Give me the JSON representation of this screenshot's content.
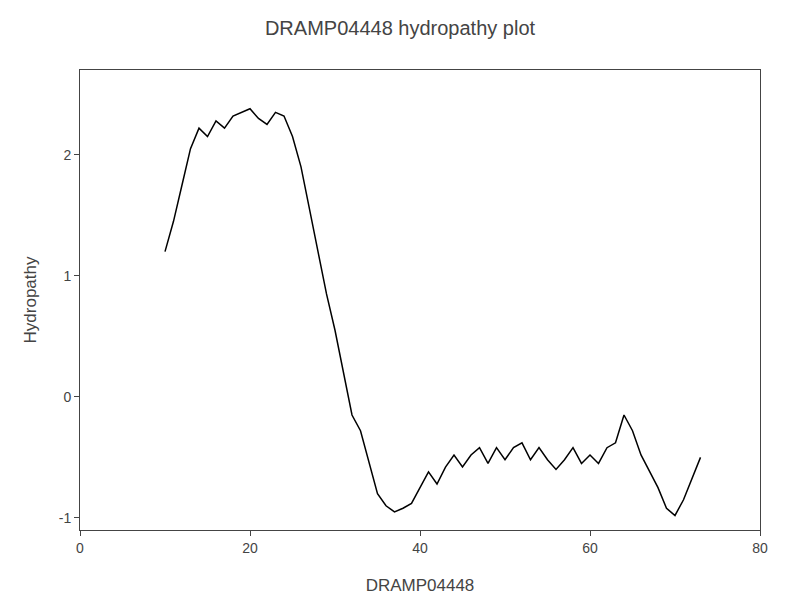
{
  "chart_data": {
    "type": "line",
    "title": "DRAMP04448 hydropathy plot",
    "xlabel": "DRAMP04448",
    "ylabel": "Hydropathy",
    "xlim": [
      0,
      80
    ],
    "ylim": [
      -1.1,
      2.7
    ],
    "xticks": [
      0,
      20,
      40,
      60,
      80
    ],
    "yticks": [
      -1,
      0,
      1,
      2
    ],
    "grid": false,
    "color": "#000000",
    "x": [
      10,
      11,
      12,
      13,
      14,
      15,
      16,
      17,
      18,
      19,
      20,
      21,
      22,
      23,
      24,
      25,
      26,
      27,
      28,
      29,
      30,
      31,
      32,
      33,
      34,
      35,
      36,
      37,
      38,
      39,
      40,
      41,
      42,
      43,
      44,
      45,
      46,
      47,
      48,
      49,
      50,
      51,
      52,
      53,
      54,
      55,
      56,
      57,
      58,
      59,
      60,
      61,
      62,
      63,
      64,
      65,
      66,
      67,
      68,
      69,
      70,
      71,
      72,
      73
    ],
    "values": [
      1.2,
      1.45,
      1.75,
      2.05,
      2.22,
      2.15,
      2.28,
      2.22,
      2.32,
      2.35,
      2.38,
      2.3,
      2.25,
      2.35,
      2.32,
      2.15,
      1.9,
      1.55,
      1.2,
      0.85,
      0.55,
      0.2,
      -0.15,
      -0.28,
      -0.55,
      -0.8,
      -0.9,
      -0.95,
      -0.92,
      -0.88,
      -0.75,
      -0.62,
      -0.72,
      -0.58,
      -0.48,
      -0.58,
      -0.48,
      -0.42,
      -0.55,
      -0.42,
      -0.52,
      -0.42,
      -0.38,
      -0.52,
      -0.42,
      -0.52,
      -0.6,
      -0.52,
      -0.42,
      -0.55,
      -0.48,
      -0.55,
      -0.42,
      -0.38,
      -0.15,
      -0.28,
      -0.48,
      -0.62,
      -0.75,
      -0.92,
      -0.98,
      -0.85,
      -0.68,
      -0.5
    ]
  }
}
